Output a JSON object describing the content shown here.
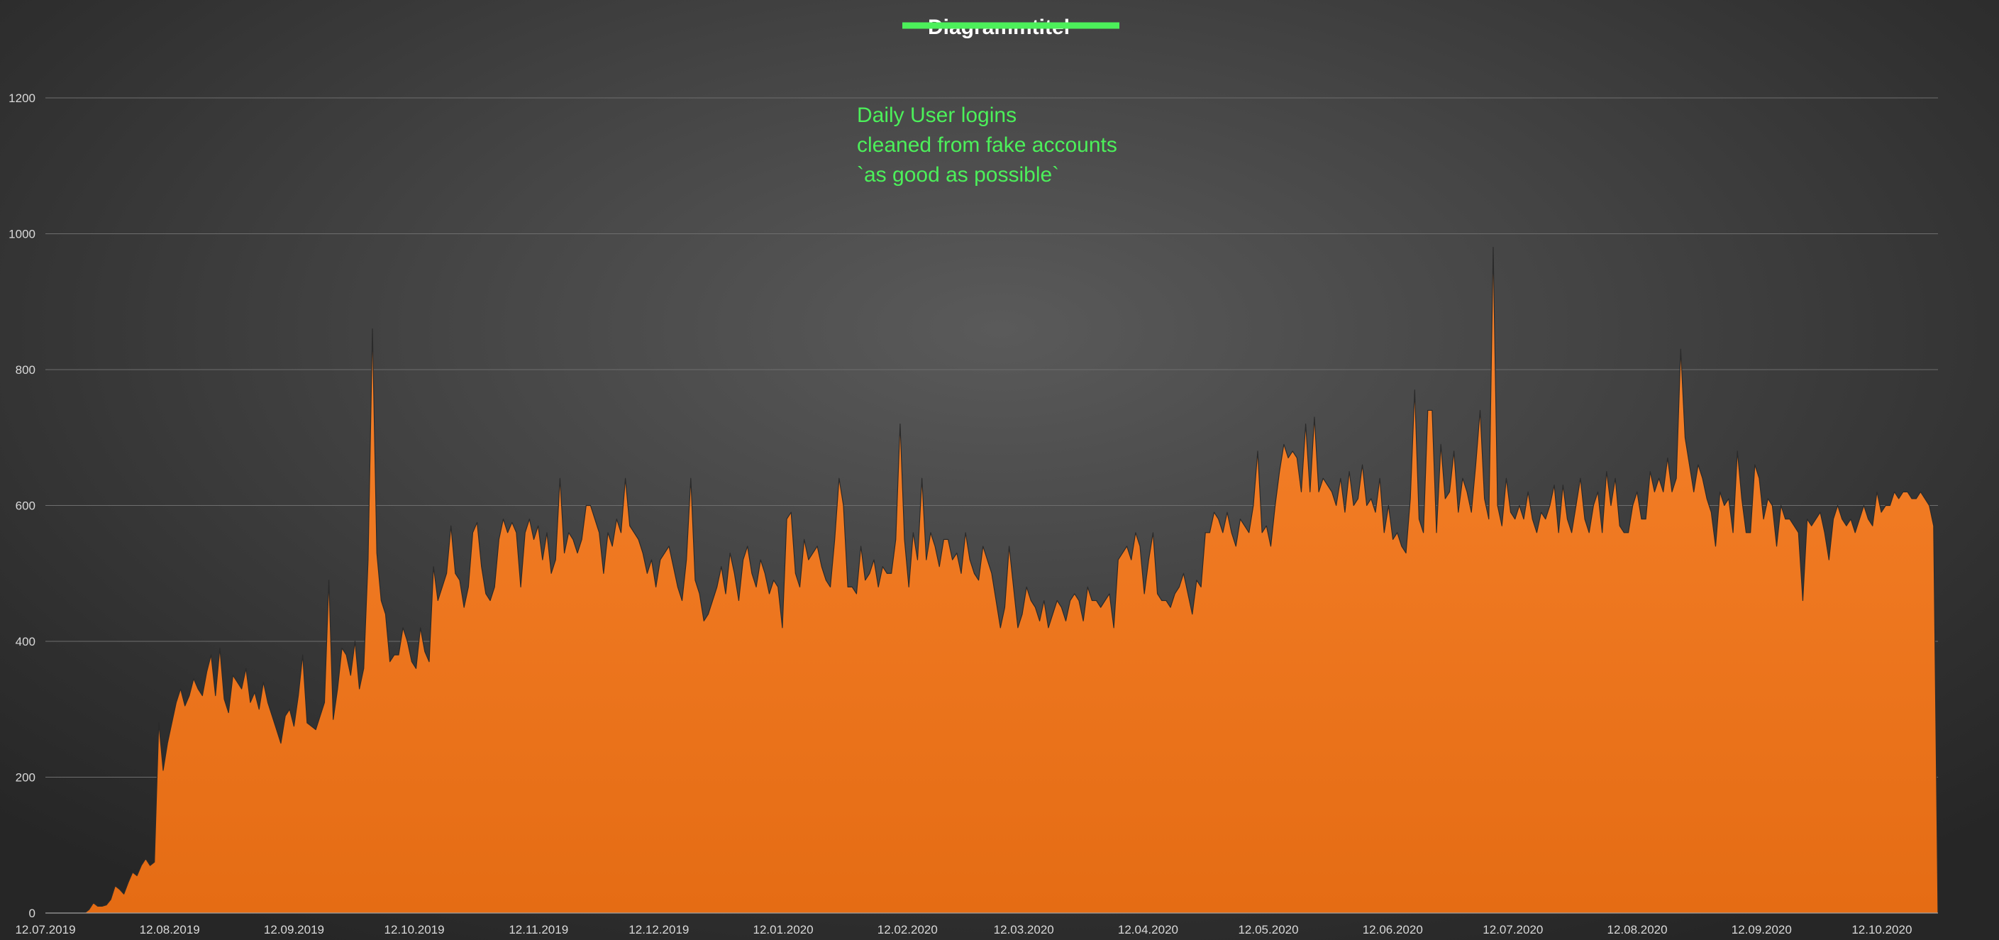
{
  "chart_data": {
    "type": "area",
    "title": "Diagrammtitel",
    "title_struck_through": true,
    "annotation": [
      "Daily User logins",
      "cleaned from fake accounts",
      "`as good as possible`"
    ],
    "x_start": "12.07.2019",
    "x_ticks": [
      "12.07.2019",
      "12.08.2019",
      "12.09.2019",
      "12.10.2019",
      "12.11.2019",
      "12.12.2019",
      "12.01.2020",
      "12.02.2020",
      "12.03.2020",
      "12.04.2020",
      "12.05.2020",
      "12.06.2020",
      "12.07.2020",
      "12.08.2020",
      "12.09.2020",
      "12.10.2020"
    ],
    "x_end": "26.10.2020",
    "ylim": [
      0,
      1200
    ],
    "y_ticks": [
      0,
      200,
      400,
      600,
      800,
      1000,
      1200
    ],
    "grid": true,
    "legend": "none",
    "colors": {
      "area_top": "#f7832c",
      "area_bottom": "#e56c14",
      "edge": "#2a2a2a",
      "grid": "#6e6e6e",
      "tick_text": "#d9d9d9",
      "annotation": "#4cf05a",
      "title_strike": "#4cf05a"
    },
    "series": [
      {
        "values": [
          0,
          0,
          0,
          0,
          0,
          0,
          0,
          0,
          0,
          0,
          5,
          15,
          10,
          10,
          12,
          20,
          40,
          35,
          28,
          45,
          60,
          55,
          70,
          80,
          70,
          75,
          280,
          210,
          250,
          280,
          310,
          330,
          305,
          320,
          345,
          330,
          320,
          355,
          380,
          320,
          390,
          315,
          295,
          350,
          340,
          330,
          360,
          310,
          325,
          300,
          340,
          310,
          290,
          270,
          250,
          290,
          300,
          275,
          320,
          380,
          280,
          275,
          270,
          290,
          310,
          490,
          285,
          330,
          390,
          380,
          350,
          400,
          330,
          360,
          520,
          860,
          530,
          460,
          440,
          370,
          380,
          380,
          420,
          400,
          370,
          360,
          420,
          385,
          370,
          510,
          460,
          480,
          500,
          570,
          500,
          490,
          450,
          480,
          560,
          575,
          510,
          470,
          460,
          480,
          550,
          580,
          560,
          575,
          560,
          480,
          560,
          580,
          550,
          570,
          520,
          560,
          500,
          520,
          640,
          530,
          560,
          550,
          530,
          550,
          600,
          600,
          580,
          560,
          500,
          560,
          540,
          580,
          560,
          640,
          570,
          560,
          550,
          530,
          500,
          520,
          480,
          520,
          530,
          540,
          510,
          480,
          460,
          520,
          640,
          490,
          470,
          430,
          440,
          460,
          480,
          510,
          470,
          530,
          500,
          460,
          520,
          540,
          500,
          480,
          520,
          500,
          470,
          490,
          480,
          420,
          580,
          590,
          500,
          480,
          550,
          520,
          530,
          540,
          510,
          490,
          480,
          550,
          640,
          600,
          480,
          480,
          470,
          540,
          490,
          500,
          520,
          480,
          510,
          500,
          500,
          550,
          720,
          550,
          480,
          560,
          520,
          640,
          520,
          560,
          540,
          510,
          550,
          550,
          520,
          530,
          500,
          560,
          520,
          500,
          490,
          540,
          520,
          500,
          460,
          420,
          450,
          540,
          480,
          420,
          440,
          480,
          460,
          450,
          430,
          460,
          420,
          440,
          460,
          450,
          430,
          460,
          470,
          460,
          430,
          480,
          460,
          460,
          450,
          460,
          470,
          420,
          520,
          530,
          540,
          520,
          560,
          540,
          470,
          520,
          560,
          470,
          460,
          460,
          450,
          470,
          480,
          500,
          470,
          440,
          490,
          480,
          560,
          560,
          590,
          580,
          560,
          590,
          560,
          540,
          580,
          570,
          560,
          600,
          680,
          560,
          570,
          540,
          600,
          650,
          690,
          670,
          680,
          670,
          620,
          720,
          620,
          730,
          620,
          640,
          630,
          620,
          600,
          640,
          590,
          650,
          600,
          610,
          660,
          600,
          610,
          590,
          640,
          560,
          600,
          550,
          560,
          540,
          530,
          610,
          770,
          580,
          560,
          740,
          740,
          560,
          690,
          610,
          620,
          680,
          590,
          640,
          620,
          590,
          660,
          740,
          610,
          580,
          980,
          600,
          570,
          640,
          590,
          580,
          600,
          580,
          620,
          580,
          560,
          590,
          580,
          600,
          630,
          560,
          630,
          580,
          560,
          600,
          640,
          580,
          560,
          600,
          620,
          560,
          650,
          600,
          640,
          570,
          560,
          560,
          600,
          620,
          580,
          580,
          650,
          620,
          640,
          620,
          670,
          620,
          640,
          830,
          700,
          660,
          620,
          660,
          640,
          610,
          590,
          540,
          620,
          600,
          610,
          560,
          680,
          610,
          560,
          560,
          660,
          640,
          580,
          610,
          600,
          540,
          600,
          580,
          580,
          570,
          560,
          460,
          580,
          570,
          580,
          590,
          560,
          520,
          580,
          600,
          580,
          570,
          580,
          560,
          580,
          600,
          580,
          570,
          620,
          590,
          600,
          600,
          620,
          610,
          620,
          620,
          610,
          610,
          620,
          610,
          600,
          570,
          0
        ]
      }
    ]
  }
}
